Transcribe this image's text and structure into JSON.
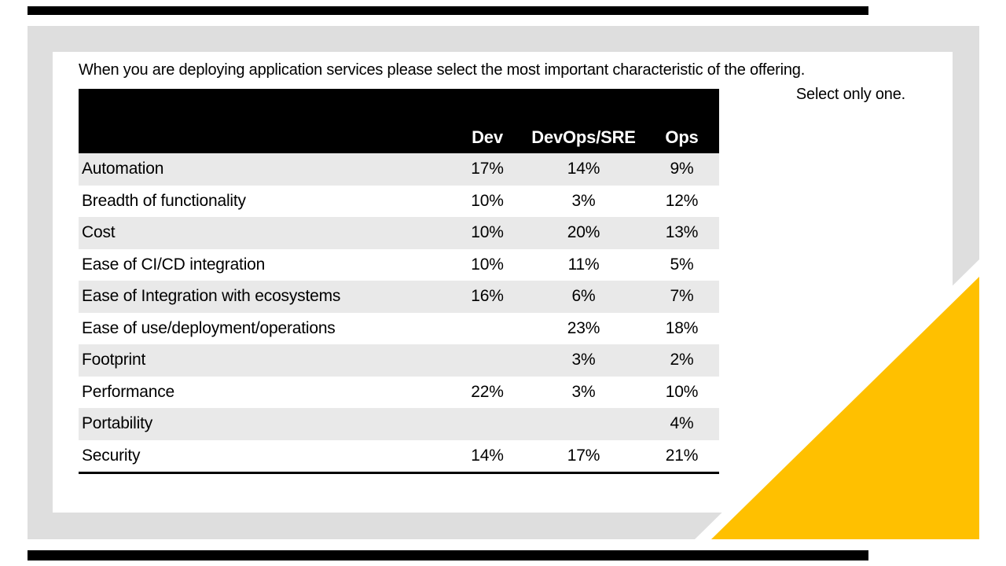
{
  "slide": {
    "prompt_line1": "When you are deploying application services please select the most important characteristic of the offering.",
    "prompt_line2": "Select only one.",
    "colors": {
      "accent_yellow": "#FFC000",
      "frame_gray": "#DEDEDE",
      "row_stripe": "#E9E9E9",
      "bar_black": "#000000",
      "gap_white": "#FFFFFF"
    }
  },
  "chart_data": {
    "type": "table",
    "title": "When you are deploying application services please select the most important characteristic of the offering. Select only one.",
    "columns": [
      "Dev",
      "DevOps/SRE",
      "Ops"
    ],
    "rows": [
      {
        "label": "Automation",
        "values": [
          "17%",
          "14%",
          "9%"
        ]
      },
      {
        "label": "Breadth of functionality",
        "values": [
          "10%",
          "3%",
          "12%"
        ]
      },
      {
        "label": "Cost",
        "values": [
          "10%",
          "20%",
          "13%"
        ]
      },
      {
        "label": "Ease of CI/CD integration",
        "values": [
          "10%",
          "11%",
          "5%"
        ]
      },
      {
        "label": "Ease of Integration with ecosystems",
        "values": [
          "16%",
          "6%",
          "7%"
        ]
      },
      {
        "label": "Ease of use/deployment/operations",
        "values": [
          "",
          "23%",
          "18%"
        ]
      },
      {
        "label": "Footprint",
        "values": [
          "",
          "3%",
          "2%"
        ]
      },
      {
        "label": "Performance",
        "values": [
          "22%",
          "3%",
          "10%"
        ]
      },
      {
        "label": "Portability",
        "values": [
          "",
          "",
          "4%"
        ]
      },
      {
        "label": "Security",
        "values": [
          "14%",
          "17%",
          "21%"
        ]
      }
    ],
    "layout": {
      "striped_rows": true,
      "header_background": "#000000",
      "header_text_color": "#FFFFFF"
    }
  }
}
